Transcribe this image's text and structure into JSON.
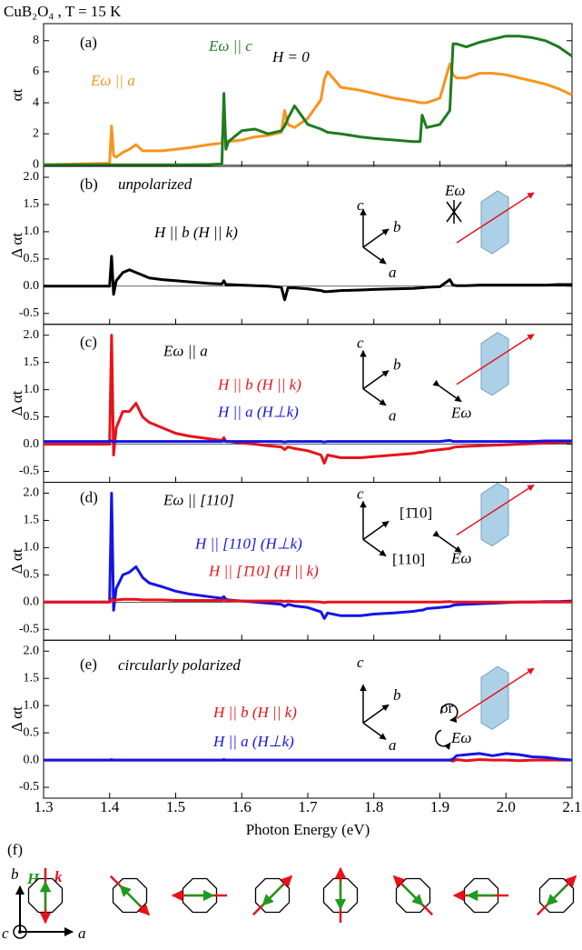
{
  "title": "CuB₂O₄ , T = 15 K",
  "panel_f": {
    "label": "(f)",
    "axes": [
      "b",
      "c",
      "a"
    ],
    "H": "H",
    "k": "k"
  },
  "chart_data": [
    {
      "type": "line",
      "ylabel": "αt",
      "annotations": [
        "(a)",
        "H = 0"
      ],
      "xlim": [
        1.3,
        2.1
      ],
      "ylim": [
        -0.1,
        9.1
      ],
      "yticks": [
        0,
        2,
        4,
        6,
        8
      ],
      "x": [
        1.3,
        1.35,
        1.4,
        1.403,
        1.406,
        1.41,
        1.42,
        1.43,
        1.44,
        1.45,
        1.46,
        1.48,
        1.5,
        1.52,
        1.55,
        1.57,
        1.573,
        1.576,
        1.58,
        1.6,
        1.62,
        1.64,
        1.66,
        1.665,
        1.67,
        1.68,
        1.7,
        1.72,
        1.725,
        1.73,
        1.75,
        1.78,
        1.8,
        1.83,
        1.86,
        1.87,
        1.873,
        1.88,
        1.9,
        1.915,
        1.92,
        1.925,
        1.94,
        1.96,
        1.98,
        2.0,
        2.02,
        2.04,
        2.06,
        2.08,
        2.1
      ],
      "series": [
        {
          "name": "Eω || a",
          "color": "#f7941d",
          "values": [
            0,
            0.05,
            0.1,
            2.5,
            0.6,
            0.5,
            0.8,
            1.0,
            1.3,
            0.9,
            0.9,
            0.9,
            1.0,
            1.1,
            1.3,
            1.4,
            2.8,
            1.6,
            1.5,
            1.6,
            1.8,
            1.9,
            2.1,
            3.5,
            2.6,
            2.4,
            3.0,
            4.2,
            5.5,
            6.0,
            5.0,
            4.8,
            4.6,
            4.3,
            4.1,
            4.0,
            4.0,
            4.0,
            4.3,
            6.5,
            5.8,
            5.6,
            5.6,
            5.9,
            5.9,
            5.8,
            5.6,
            5.4,
            5.2,
            4.9,
            4.5
          ]
        },
        {
          "name": "Eω || c",
          "color": "#1e7b1e",
          "values": [
            0,
            0,
            0,
            0,
            0,
            0,
            0,
            0,
            0,
            0,
            0,
            0,
            0,
            0,
            0.02,
            0.05,
            4.6,
            1.0,
            1.5,
            2.2,
            2.3,
            2.0,
            2.2,
            2.5,
            3.0,
            3.8,
            2.6,
            2.3,
            2.2,
            2.1,
            2.0,
            1.8,
            1.7,
            1.6,
            1.5,
            1.5,
            3.2,
            2.4,
            2.6,
            3.5,
            7.8,
            7.8,
            7.6,
            7.9,
            8.1,
            8.3,
            8.3,
            8.2,
            8.0,
            7.6,
            7.0
          ]
        }
      ]
    },
    {
      "type": "line",
      "ylabel": "Δ αt",
      "annotations": [
        "(b)",
        "unpolarized",
        "c",
        "b",
        "a",
        "Eω"
      ],
      "xlim": [
        1.3,
        2.1
      ],
      "ylim": [
        -0.7,
        2.2
      ],
      "yticks": [
        -0.5,
        {
          "value": 0,
          "label": "0.0"
        },
        0.5,
        {
          "value": 1,
          "label": "1.0"
        },
        1.5,
        {
          "value": 2,
          "label": "2.0"
        }
      ],
      "x": [
        1.3,
        1.35,
        1.4,
        1.403,
        1.406,
        1.41,
        1.42,
        1.43,
        1.44,
        1.45,
        1.46,
        1.48,
        1.5,
        1.52,
        1.55,
        1.57,
        1.573,
        1.576,
        1.58,
        1.6,
        1.62,
        1.64,
        1.66,
        1.665,
        1.67,
        1.68,
        1.7,
        1.72,
        1.725,
        1.73,
        1.75,
        1.78,
        1.8,
        1.83,
        1.86,
        1.87,
        1.873,
        1.88,
        1.9,
        1.915,
        1.92,
        1.925,
        1.94,
        1.96,
        1.98,
        2.0,
        2.02,
        2.04,
        2.06,
        2.08,
        2.1
      ],
      "series": [
        {
          "name": "H || b  (H || k)",
          "color": "#000000",
          "values": [
            0,
            0,
            0,
            0.55,
            -0.15,
            0.1,
            0.25,
            0.3,
            0.25,
            0.2,
            0.15,
            0.12,
            0.1,
            0.08,
            0.05,
            0.04,
            0.1,
            0.03,
            0.03,
            0.02,
            0.01,
            0,
            -0.02,
            -0.25,
            -0.03,
            -0.03,
            -0.05,
            -0.08,
            -0.1,
            -0.1,
            -0.08,
            -0.07,
            -0.06,
            -0.05,
            -0.04,
            -0.03,
            -0.03,
            -0.02,
            -0.01,
            0.12,
            0.02,
            0.01,
            0.01,
            0.02,
            0.02,
            0.02,
            0.02,
            0.02,
            0.02,
            0.03,
            0.03
          ]
        }
      ]
    },
    {
      "type": "line",
      "ylabel": "Δ αt",
      "annotations": [
        "(c)",
        "Eω || a",
        "c",
        "b",
        "a",
        "Eω"
      ],
      "xlim": [
        1.3,
        2.1
      ],
      "ylim": [
        -0.7,
        2.2
      ],
      "yticks": [
        -0.5,
        {
          "value": 0,
          "label": "0.0"
        },
        0.5,
        {
          "value": 1,
          "label": "1.0"
        },
        1.5,
        {
          "value": 2,
          "label": "2.0"
        }
      ],
      "x": [
        1.3,
        1.35,
        1.4,
        1.403,
        1.406,
        1.41,
        1.42,
        1.43,
        1.44,
        1.45,
        1.46,
        1.48,
        1.5,
        1.52,
        1.55,
        1.57,
        1.573,
        1.576,
        1.58,
        1.6,
        1.62,
        1.64,
        1.66,
        1.665,
        1.67,
        1.68,
        1.7,
        1.72,
        1.725,
        1.73,
        1.75,
        1.78,
        1.8,
        1.83,
        1.86,
        1.87,
        1.873,
        1.88,
        1.9,
        1.915,
        1.92,
        1.925,
        1.94,
        1.96,
        1.98,
        2.0,
        2.02,
        2.04,
        2.06,
        2.08,
        2.1
      ],
      "series": [
        {
          "name": "H || b  (H || k)",
          "color": "#e8121a",
          "values": [
            0,
            0,
            0,
            2.0,
            -0.2,
            0.3,
            0.6,
            0.6,
            0.75,
            0.5,
            0.4,
            0.3,
            0.2,
            0.15,
            0.1,
            0.07,
            0.12,
            0.05,
            0.05,
            0.02,
            0,
            -0.03,
            -0.05,
            -0.1,
            -0.05,
            -0.08,
            -0.12,
            -0.2,
            -0.35,
            -0.2,
            -0.25,
            -0.25,
            -0.23,
            -0.2,
            -0.17,
            -0.15,
            -0.15,
            -0.13,
            -0.1,
            -0.08,
            -0.06,
            -0.05,
            -0.04,
            -0.03,
            -0.02,
            -0.01,
            0,
            0.01,
            0.02,
            0.03,
            0.04
          ]
        },
        {
          "name": "H || a  (H⊥k)",
          "color": "#1414e6",
          "values": [
            0.05,
            0.05,
            0.05,
            0.06,
            0.04,
            0.05,
            0.05,
            0.05,
            0.05,
            0.05,
            0.05,
            0.05,
            0.05,
            0.05,
            0.05,
            0.05,
            0.06,
            0.05,
            0.05,
            0.05,
            0.05,
            0.05,
            0.05,
            0.04,
            0.05,
            0.05,
            0.05,
            0.05,
            0.04,
            0.05,
            0.05,
            0.05,
            0.05,
            0.05,
            0.05,
            0.05,
            0.05,
            0.05,
            0.05,
            0.07,
            0.05,
            0.05,
            0.05,
            0.05,
            0.05,
            0.05,
            0.05,
            0.05,
            0.06,
            0.06,
            0.06
          ]
        }
      ]
    },
    {
      "type": "line",
      "ylabel": "Δ αt",
      "annotations": [
        "(d)",
        "Eω || [110]",
        "c",
        "[1̄10]",
        "[110]",
        "Eω"
      ],
      "xlim": [
        1.3,
        2.1
      ],
      "ylim": [
        -0.7,
        2.2
      ],
      "yticks": [
        -0.5,
        {
          "value": 0,
          "label": "0.0"
        },
        0.5,
        {
          "value": 1,
          "label": "1.0"
        },
        1.5,
        {
          "value": 2,
          "label": "2.0"
        }
      ],
      "x": [
        1.3,
        1.35,
        1.4,
        1.403,
        1.406,
        1.41,
        1.42,
        1.43,
        1.44,
        1.45,
        1.46,
        1.48,
        1.5,
        1.52,
        1.55,
        1.57,
        1.573,
        1.576,
        1.58,
        1.6,
        1.62,
        1.64,
        1.66,
        1.665,
        1.67,
        1.68,
        1.7,
        1.72,
        1.725,
        1.73,
        1.75,
        1.78,
        1.8,
        1.83,
        1.86,
        1.87,
        1.873,
        1.88,
        1.9,
        1.915,
        1.92,
        1.925,
        1.94,
        1.96,
        1.98,
        2.0,
        2.02,
        2.04,
        2.06,
        2.08,
        2.1
      ],
      "series": [
        {
          "name": "H || [110]  (H⊥k)",
          "color": "#1414e6",
          "values": [
            0,
            0,
            0,
            2.0,
            -0.15,
            0.25,
            0.5,
            0.55,
            0.65,
            0.45,
            0.35,
            0.28,
            0.2,
            0.15,
            0.1,
            0.07,
            0.1,
            0.05,
            0.04,
            0.02,
            0,
            -0.02,
            -0.04,
            -0.08,
            -0.04,
            -0.07,
            -0.1,
            -0.18,
            -0.3,
            -0.2,
            -0.25,
            -0.25,
            -0.22,
            -0.2,
            -0.17,
            -0.15,
            -0.15,
            -0.12,
            -0.1,
            -0.08,
            -0.06,
            -0.05,
            -0.04,
            -0.03,
            -0.02,
            -0.01,
            0,
            0,
            0.01,
            0.01,
            0.02
          ]
        },
        {
          "name": "H || [1̄10]  (H || k)",
          "color": "#e8121a",
          "values": [
            0,
            0,
            0,
            0.06,
            0.02,
            0.04,
            0.05,
            0.05,
            0.05,
            0.04,
            0.04,
            0.04,
            0.03,
            0.03,
            0.03,
            0.03,
            0.04,
            0.03,
            0.03,
            0.02,
            0.02,
            0.02,
            0.02,
            0.01,
            0.02,
            0.01,
            0.01,
            0,
            -0.01,
            0,
            0,
            0,
            0,
            0,
            0,
            0,
            0,
            0,
            0,
            0.01,
            0,
            0,
            0,
            0,
            0,
            0,
            0,
            0,
            0,
            0,
            0
          ]
        }
      ]
    },
    {
      "type": "line",
      "ylabel": "Δ αt",
      "xlabel": "Photon Energy  (eV)",
      "annotations": [
        "(e)",
        "circularly polarized",
        "c",
        "b",
        "a",
        "or",
        "Eω"
      ],
      "xlim": [
        1.3,
        2.1
      ],
      "ylim": [
        -0.7,
        2.2
      ],
      "xticks": [
        1.3,
        1.4,
        1.5,
        1.6,
        1.7,
        1.8,
        1.9,
        {
          "value": 2,
          "label": "2.0"
        },
        2.1
      ],
      "yticks": [
        -0.5,
        {
          "value": 0,
          "label": "0.0"
        },
        0.5,
        {
          "value": 1,
          "label": "1.0"
        },
        1.5,
        {
          "value": 2,
          "label": "2.0"
        }
      ],
      "x": [
        1.3,
        1.35,
        1.4,
        1.403,
        1.406,
        1.41,
        1.42,
        1.43,
        1.44,
        1.45,
        1.46,
        1.48,
        1.5,
        1.52,
        1.55,
        1.57,
        1.573,
        1.576,
        1.58,
        1.6,
        1.62,
        1.64,
        1.66,
        1.665,
        1.67,
        1.68,
        1.7,
        1.72,
        1.725,
        1.73,
        1.75,
        1.78,
        1.8,
        1.83,
        1.86,
        1.87,
        1.873,
        1.88,
        1.9,
        1.915,
        1.92,
        1.925,
        1.94,
        1.96,
        1.98,
        2.0,
        2.02,
        2.04,
        2.06,
        2.08,
        2.1
      ],
      "series": [
        {
          "name": "H || b  (H || k)",
          "color": "#e8121a",
          "values": [
            0,
            0,
            0,
            0.01,
            0,
            0,
            0,
            0,
            0,
            0,
            0,
            0,
            0,
            0,
            0,
            0,
            0.01,
            0,
            0,
            0,
            0,
            0,
            0,
            0,
            0,
            0,
            0,
            0,
            0,
            0,
            0,
            0,
            0,
            0,
            0,
            0,
            0,
            0,
            0,
            0,
            -0.02,
            0.01,
            -0.01,
            0.01,
            0,
            0,
            -0.01,
            0,
            0,
            0,
            0
          ]
        },
        {
          "name": "H || a  (H⊥k)",
          "color": "#1414e6",
          "values": [
            0,
            0,
            0,
            0,
            0,
            0,
            0,
            0,
            0,
            0,
            0,
            0,
            0,
            0,
            0,
            0,
            0,
            0,
            0,
            0,
            0,
            0,
            0,
            0,
            0,
            0,
            0,
            0,
            0,
            0,
            0,
            0,
            0,
            0,
            0,
            0,
            0,
            0,
            0,
            0,
            0.02,
            0.08,
            0.1,
            0.12,
            0.08,
            0.12,
            0.1,
            0.06,
            0.05,
            0.02,
            0
          ]
        }
      ]
    }
  ]
}
